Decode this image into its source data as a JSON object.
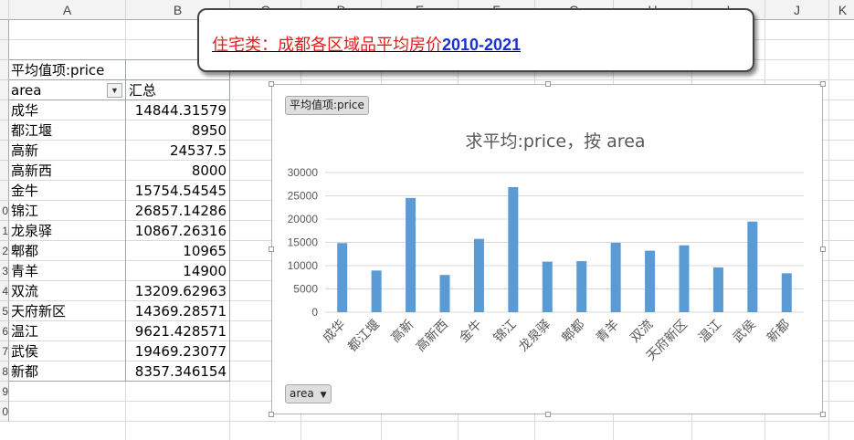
{
  "columns": [
    "A",
    "B",
    "C",
    "D",
    "E",
    "F",
    "G",
    "H",
    "I",
    "J",
    "K"
  ],
  "row_numbers_partial": [
    "",
    "",
    "",
    "",
    "",
    "",
    "",
    "",
    "",
    "0",
    "1",
    "2",
    "3",
    "4",
    "5",
    "6",
    "7",
    "8",
    "9",
    "0"
  ],
  "pivot": {
    "value_label": "平均值项:price",
    "row_field": "area",
    "total_label": "汇总",
    "rows": [
      {
        "area": "成华",
        "value": "14844.31579"
      },
      {
        "area": "都江堰",
        "value": "8950"
      },
      {
        "area": "高新",
        "value": "24537.5"
      },
      {
        "area": "高新西",
        "value": "8000"
      },
      {
        "area": "金牛",
        "value": "15754.54545"
      },
      {
        "area": "锦江",
        "value": "26857.14286"
      },
      {
        "area": "龙泉驿",
        "value": "10867.26316"
      },
      {
        "area": "郫都",
        "value": "10965"
      },
      {
        "area": "青羊",
        "value": "14900"
      },
      {
        "area": "双流",
        "value": "13209.62963"
      },
      {
        "area": "天府新区",
        "value": "14369.28571"
      },
      {
        "area": "温江",
        "value": "9621.428571"
      },
      {
        "area": "武侯",
        "value": "19469.23077"
      },
      {
        "area": "新都",
        "value": "8357.346154"
      }
    ]
  },
  "callout": {
    "part1": "住宅类：成都各区域品平均房价",
    "part2": "2010-2021"
  },
  "chart_buttons": {
    "value_field": "平均值项:price",
    "axis_field": "area",
    "dropdown_glyph": "▼"
  },
  "chart_data": {
    "type": "bar",
    "title": "求平均:price，按  area",
    "categories": [
      "成华",
      "都江堰",
      "高新",
      "高新西",
      "金牛",
      "锦江",
      "龙泉驿",
      "郫都",
      "青羊",
      "双流",
      "天府新区",
      "温江",
      "武侯",
      "新都"
    ],
    "values": [
      14844.31579,
      8950,
      24537.5,
      8000,
      15754.54545,
      26857.14286,
      10867.26316,
      10965,
      14900,
      13209.62963,
      14369.28571,
      9621.428571,
      19469.23077,
      8357.346154
    ],
    "ylim": [
      0,
      30000
    ],
    "yticks": [
      0,
      5000,
      10000,
      15000,
      20000,
      25000,
      30000
    ],
    "grid": true,
    "bar_color": "#5b9bd5"
  }
}
